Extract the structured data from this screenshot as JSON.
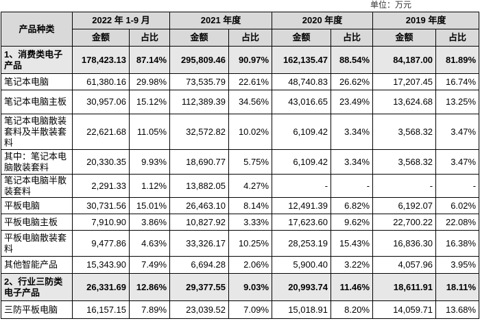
{
  "unit": "单位：万元",
  "table": {
    "header": {
      "product": "产品种类",
      "years": [
        "2022 年 1-9 月",
        "2021 年度",
        "2020 年度",
        "2019 年度"
      ],
      "subheaders": [
        "金额",
        "占比",
        "金额",
        "占比",
        "金额",
        "占比",
        "金额",
        "占比"
      ]
    },
    "rows": [
      [
        "1、消费类电子产品",
        "178,423.13",
        "87.14%",
        "295,809.46",
        "90.97%",
        "162,135.47",
        "88.54%",
        "84,187.00",
        "81.89%"
      ],
      [
        "笔记本电脑",
        "61,380.16",
        "29.98%",
        "73,535.79",
        "22.61%",
        "48,740.83",
        "26.62%",
        "17,207.45",
        "16.74%"
      ],
      [
        "笔记本电脑主板",
        "30,957.06",
        "15.12%",
        "112,389.39",
        "34.56%",
        "43,016.65",
        "23.49%",
        "13,624.68",
        "13.25%"
      ],
      [
        "笔记本电脑散装套料及半散装套料",
        "22,621.68",
        "11.05%",
        "32,572.82",
        "10.02%",
        "6,109.42",
        "3.34%",
        "3,568.32",
        "3.47%"
      ],
      [
        "其中：笔记本电脑散装套料",
        "20,330.35",
        "9.93%",
        "18,690.77",
        "5.75%",
        "6,109.42",
        "3.34%",
        "3,568.32",
        "3.47%"
      ],
      [
        "笔记本电脑半散装套料",
        "2,291.33",
        "1.12%",
        "13,882.05",
        "4.27%",
        "-",
        "-",
        "-",
        "-"
      ],
      [
        "平板电脑",
        "30,731.56",
        "15.01%",
        "26,463.10",
        "8.14%",
        "12,491.39",
        "6.82%",
        "6,192.07",
        "6.02%"
      ],
      [
        "平板电脑主板",
        "7,910.90",
        "3.86%",
        "10,827.92",
        "3.33%",
        "17,623.60",
        "9.62%",
        "22,700.22",
        "22.08%"
      ],
      [
        "平板电脑散装套料",
        "9,477.86",
        "4.63%",
        "33,326.17",
        "10.25%",
        "28,253.19",
        "15.43%",
        "16,836.30",
        "16.38%"
      ],
      [
        "其他智能产品",
        "15,343.90",
        "7.49%",
        "6,694.28",
        "2.06%",
        "5,900.40",
        "3.22%",
        "4,057.96",
        "3.95%"
      ],
      [
        "2、行业三防类电子产品",
        "26,331.69",
        "12.86%",
        "29,377.55",
        "9.03%",
        "20,993.74",
        "11.46%",
        "18,611.91",
        "18.11%"
      ],
      [
        "三防平板电脑",
        "16,157.15",
        "7.89%",
        "23,039.52",
        "7.09%",
        "15,018.91",
        "8.20%",
        "14,059.71",
        "13.68%"
      ]
    ]
  }
}
